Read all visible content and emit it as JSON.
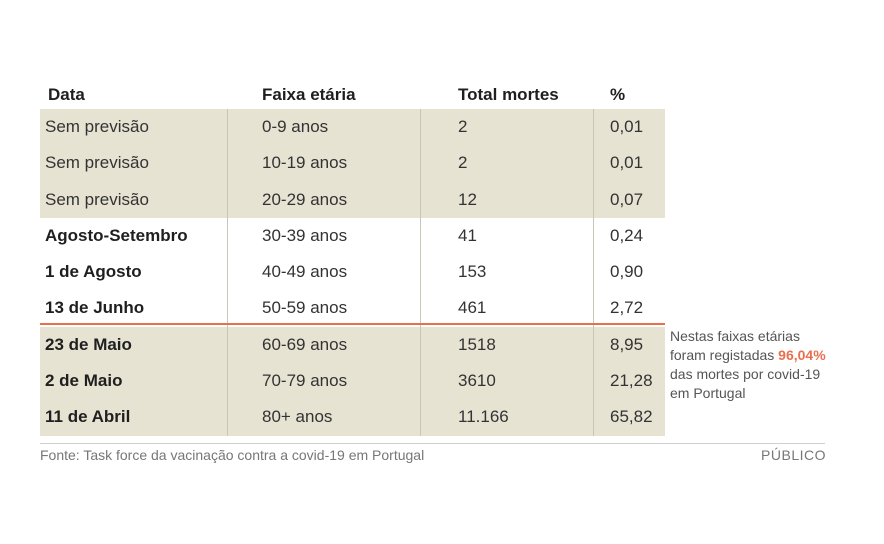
{
  "colors": {
    "accent": "#e8704e",
    "shade": "#e6e3d3"
  },
  "table": {
    "headers": [
      "Data",
      "Faixa etária",
      "Total mortes",
      "%"
    ],
    "rows": [
      [
        "Sem previsão",
        "0-9 anos",
        "2",
        "0,01"
      ],
      [
        "Sem previsão",
        "10-19 anos",
        "2",
        "0,01"
      ],
      [
        "Sem previsão",
        "20-29 anos",
        "12",
        "0,07"
      ],
      [
        "Agosto-Setembro",
        "30-39 anos",
        "41",
        "0,24"
      ],
      [
        "1 de Agosto",
        "40-49 anos",
        "153",
        "0,90"
      ],
      [
        "13 de Junho",
        "50-59 anos",
        "461",
        "2,72"
      ],
      [
        "23 de Maio",
        "60-69 anos",
        "1518",
        "8,95"
      ],
      [
        "2 de Maio",
        "70-79 anos",
        "3610",
        "21,28"
      ],
      [
        "11 de Abril",
        "80+ anos",
        "11.166",
        "65,82"
      ]
    ]
  },
  "note": {
    "before": "Nestas faixas etárias foram registadas ",
    "highlight": "96,04%",
    "after": " das mortes por covid-19 em Portugal"
  },
  "footer": {
    "source": "Fonte: Task force da vacinação contra a covid-19 em Portugal",
    "brand": "PÚBLICO"
  }
}
